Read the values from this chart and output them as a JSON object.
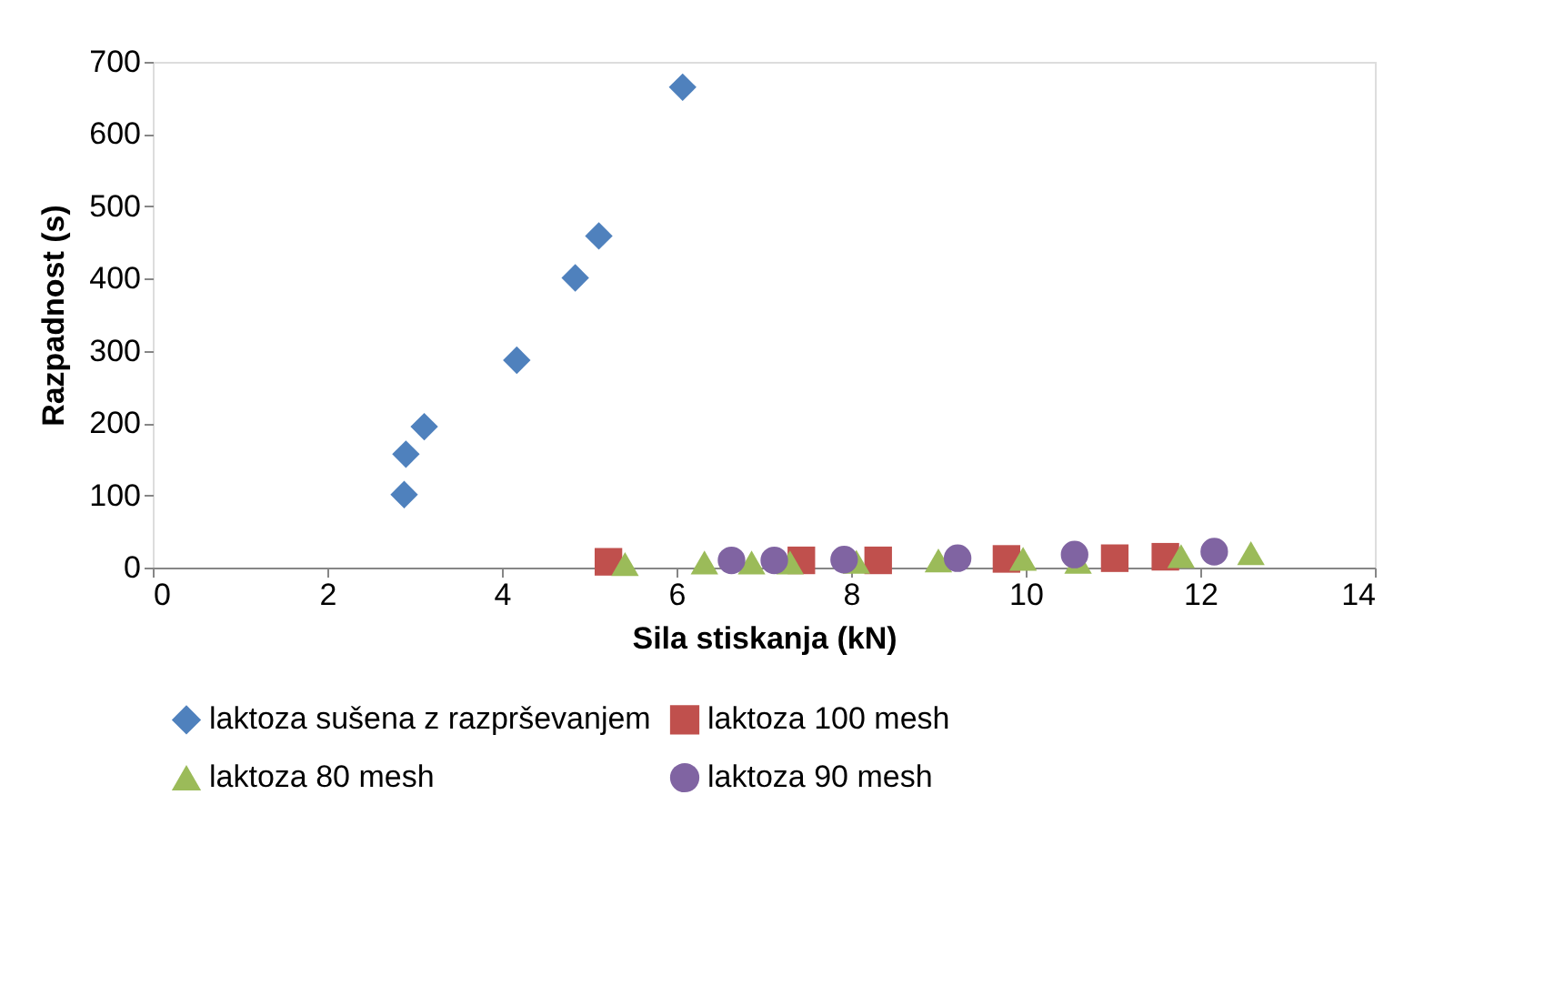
{
  "chart_data": {
    "type": "scatter",
    "xlabel": "Sila stiskanja (kN)",
    "ylabel": "Razpadnost (s)",
    "xlim": [
      0,
      14
    ],
    "xticks": [
      0,
      2,
      4,
      6,
      8,
      10,
      12,
      14
    ],
    "ylim": [
      0,
      700
    ],
    "yticks": [
      0,
      100,
      200,
      300,
      400,
      500,
      600,
      700
    ],
    "grid": false,
    "legend": "bottom",
    "series": [
      {
        "name": "laktoza sušena z razprševanjem",
        "color": "#4f81bd",
        "marker": "diamond",
        "x": [
          2.88,
          2.9,
          3.11,
          4.17,
          4.84,
          5.11,
          6.07
        ],
        "values": [
          101,
          157,
          195,
          287,
          401,
          459,
          665
        ]
      },
      {
        "name": "laktoza 100 mesh",
        "color": "#c0504d",
        "marker": "square",
        "x": [
          5.22,
          7.43,
          8.31,
          9.78,
          11.02,
          11.6
        ],
        "values": [
          8,
          10,
          10,
          12,
          13,
          15
        ]
      },
      {
        "name": "laktoza 80 mesh",
        "color": "#9bbb59",
        "marker": "triangle",
        "x": [
          5.41,
          6.32,
          6.86,
          7.3,
          8.06,
          9.0,
          9.97,
          10.6,
          11.78,
          12.58
        ],
        "values": [
          5,
          7,
          7,
          7,
          8,
          10,
          12,
          8,
          16,
          20
        ]
      },
      {
        "name": "laktoza 90 mesh",
        "color": "#8064a2",
        "marker": "circle",
        "x": [
          6.63,
          7.12,
          7.92,
          9.22,
          10.56,
          12.16
        ],
        "values": [
          10,
          10,
          11,
          13,
          18,
          22
        ]
      }
    ]
  }
}
